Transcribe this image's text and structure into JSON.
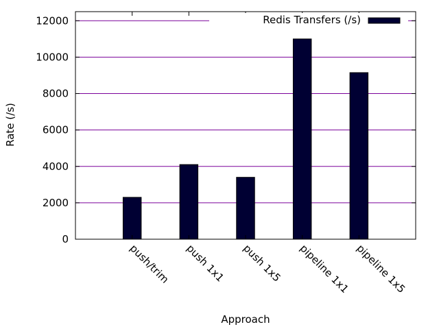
{
  "chart_data": {
    "type": "bar",
    "title": "",
    "xlabel": "Approach",
    "ylabel": "Rate (/s)",
    "categories": [
      "push/trim",
      "push 1x1",
      "push 1x5",
      "pipeline 1x1",
      "pipeline 1x5"
    ],
    "series": [
      {
        "name": "Redis Transfers (/s)",
        "values": [
          2300,
          4100,
          3400,
          11000,
          9150
        ],
        "color": "#000033"
      }
    ],
    "ylim": [
      0,
      12500
    ],
    "yticks": [
      0,
      2000,
      4000,
      6000,
      8000,
      10000,
      12000
    ],
    "xlim": [
      -1,
      5
    ],
    "grid": true,
    "grid_color": "#7a009a",
    "legend_position": "top-right"
  }
}
